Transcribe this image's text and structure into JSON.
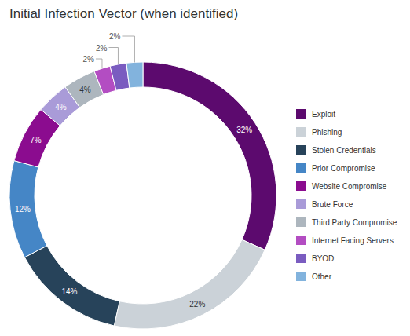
{
  "chart_data": {
    "type": "donut",
    "title": "Initial Infection Vector (when identified)",
    "categories": [
      "Exploit",
      "Phishing",
      "Stolen Credentials",
      "Prior Compromise",
      "Website Compromise",
      "Brute Force",
      "Third Party Compromise",
      "Internet Facing Servers",
      "BYOD",
      "Other"
    ],
    "values": [
      32,
      22,
      14,
      12,
      7,
      4,
      4,
      2,
      2,
      2
    ],
    "value_labels": [
      "32%",
      "22%",
      "14%",
      "12%",
      "7%",
      "4%",
      "4%",
      "2%",
      "2%",
      "2%"
    ],
    "colors": [
      "#5c0a6e",
      "#cbd2d8",
      "#27435a",
      "#4586c6",
      "#8b0c8f",
      "#a99bd8",
      "#adb6be",
      "#b34dc2",
      "#7a5cc0",
      "#82b3dd"
    ],
    "data_labels": true,
    "legend": "right"
  }
}
